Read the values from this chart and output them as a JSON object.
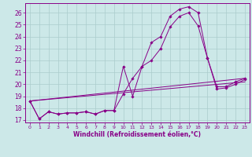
{
  "background_color": "#cce8e8",
  "grid_color": "#aacccc",
  "line_color": "#880088",
  "xlabel": "Windchill (Refroidissement éolien,°C)",
  "xlim": [
    -0.5,
    23.5
  ],
  "ylim": [
    16.8,
    26.8
  ],
  "yticks": [
    17,
    18,
    19,
    20,
    21,
    22,
    23,
    24,
    25,
    26
  ],
  "xticks": [
    0,
    1,
    2,
    3,
    4,
    5,
    6,
    7,
    8,
    9,
    10,
    11,
    12,
    13,
    14,
    15,
    16,
    17,
    18,
    19,
    20,
    21,
    22,
    23
  ],
  "series_with_markers": [
    {
      "x": [
        0,
        1,
        2,
        3,
        4,
        5,
        6,
        7,
        8,
        9,
        10,
        11,
        12,
        13,
        14,
        15,
        16,
        17,
        18,
        19,
        20,
        21,
        22,
        23
      ],
      "y": [
        18.6,
        17.1,
        17.7,
        17.5,
        17.6,
        17.6,
        17.7,
        17.5,
        17.8,
        17.8,
        21.5,
        19.0,
        21.5,
        23.5,
        24.0,
        25.7,
        26.3,
        26.5,
        26.0,
        22.2,
        19.8,
        19.8,
        20.2,
        20.5
      ]
    },
    {
      "x": [
        0,
        1,
        2,
        3,
        4,
        5,
        6,
        7,
        8,
        9,
        10,
        11,
        12,
        13,
        14,
        15,
        16,
        17,
        18,
        19,
        20,
        21,
        22,
        23
      ],
      "y": [
        18.6,
        17.1,
        17.7,
        17.5,
        17.6,
        17.6,
        17.7,
        17.5,
        17.8,
        17.8,
        19.2,
        20.5,
        21.5,
        22.0,
        23.0,
        24.8,
        25.7,
        26.0,
        24.9,
        22.2,
        19.6,
        19.7,
        20.0,
        20.4
      ]
    }
  ],
  "series_lines": [
    {
      "x": [
        0,
        23
      ],
      "y": [
        18.6,
        20.5
      ]
    },
    {
      "x": [
        0,
        23
      ],
      "y": [
        18.6,
        20.2
      ]
    }
  ]
}
